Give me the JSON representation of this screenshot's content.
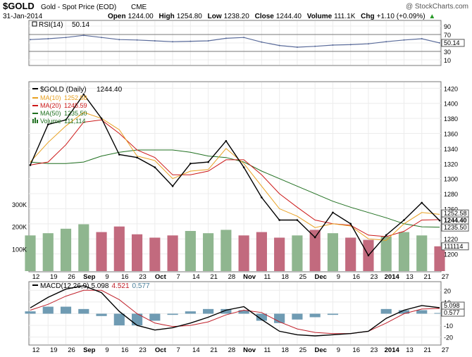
{
  "header": {
    "symbol": "$GOLD",
    "name": "Gold - Spot Price (EOD)",
    "exchange": "CME",
    "watermark": "@ StockCharts.com",
    "date": "31-Jan-2014",
    "open_label": "Open",
    "open": "1244.00",
    "high_label": "High",
    "high": "1254.80",
    "low_label": "Low",
    "low": "1238.20",
    "close_label": "Close",
    "close": "1244.40",
    "volume_label": "Volume",
    "volume": "111.1K",
    "chg_label": "Chg",
    "chg": "+1.10 (+0.09%)",
    "chg_arrow": "▲"
  },
  "rsi_panel": {
    "legend": "RSI(14)",
    "value": "50.14",
    "yticks": [
      "90",
      "70",
      "50",
      "30",
      "10"
    ],
    "value_box": "50.14"
  },
  "price_panel": {
    "legend_price": "$GOLD (Daily)",
    "legend_price_value": "1244.40",
    "legend_ma10": "MA(10)",
    "ma10_value": "1252.58",
    "legend_ma20": "MA(20)",
    "ma20_value": "1245.59",
    "legend_ma50": "MA(50)",
    "ma50_value": "1235.50",
    "legend_volume": "Volume",
    "volume_value": "111,114",
    "price_ticks": [
      "1420",
      "1400",
      "1380",
      "1360",
      "1340",
      "1320",
      "1300",
      "1280",
      "1260",
      "1240",
      "1220",
      "1200"
    ],
    "volume_ticks": [
      "300K",
      "200K",
      "100K"
    ],
    "value_boxes": [
      "1252.58",
      "1244.40",
      "1235.50",
      "111114"
    ]
  },
  "macd_panel": {
    "legend": "MACD(12,26,9)",
    "macd": "5.098",
    "signal": "4.521",
    "hist": "0.577",
    "yticks": [
      "20",
      "10",
      "0",
      "-10",
      "-20"
    ],
    "value_boxes": [
      "5.098",
      "0.577"
    ]
  },
  "x_labels": [
    "12",
    "19",
    "26",
    "Sep",
    "9",
    "16",
    "23",
    "Oct",
    "7",
    "14",
    "21",
    "28",
    "Nov",
    "11",
    "18",
    "25",
    "Dec",
    "9",
    "16",
    "23",
    "2014",
    "13",
    "21",
    "27"
  ],
  "colors": {
    "price": "#000000",
    "ma10": "#e8a020",
    "ma20": "#cc1818",
    "ma50": "#207020",
    "vol_up": "#8fb68f",
    "vol_down": "#c26a7e",
    "rsi": "#5a6b9a",
    "macd_line": "#000000",
    "signal_line": "#c0202a",
    "histogram": "#6f9bb3"
  },
  "chart_data": [
    {
      "type": "line",
      "title": "RSI(14)",
      "ylim": [
        0,
        100
      ],
      "reference_lines": [
        30,
        70
      ],
      "x": [
        "12",
        "19",
        "26",
        "Sep",
        "9",
        "16",
        "23",
        "Oct",
        "7",
        "14",
        "21",
        "28",
        "Nov",
        "11",
        "18",
        "25",
        "Dec",
        "9",
        "16",
        "23",
        "2014",
        "13",
        "21",
        "27"
      ],
      "series": [
        {
          "name": "RSI(14)",
          "values": [
            58,
            60,
            63,
            68,
            63,
            58,
            57,
            55,
            53,
            54,
            55,
            61,
            63,
            52,
            44,
            40,
            42,
            45,
            46,
            48,
            53,
            57,
            60,
            50.14
          ]
        }
      ]
    },
    {
      "type": "line",
      "title": "$GOLD (Daily)",
      "ylim": [
        1180,
        1425
      ],
      "x": [
        "12",
        "19",
        "26",
        "Sep",
        "9",
        "16",
        "23",
        "Oct",
        "7",
        "14",
        "21",
        "28",
        "Nov",
        "11",
        "18",
        "25",
        "Dec",
        "9",
        "16",
        "23",
        "2014",
        "13",
        "21",
        "27"
      ],
      "series": [
        {
          "name": "$GOLD (Daily)",
          "values": [
            1318,
            1372,
            1378,
            1412,
            1380,
            1332,
            1328,
            1315,
            1290,
            1320,
            1322,
            1350,
            1315,
            1275,
            1245,
            1245,
            1222,
            1255,
            1240,
            1198,
            1225,
            1245,
            1268,
            1244.4
          ]
        },
        {
          "name": "MA(10)",
          "values": [
            1322,
            1348,
            1370,
            1388,
            1380,
            1365,
            1330,
            1324,
            1300,
            1310,
            1312,
            1340,
            1320,
            1290,
            1260,
            1250,
            1235,
            1240,
            1237,
            1220,
            1218,
            1240,
            1255,
            1252.58
          ]
        },
        {
          "name": "MA(20)",
          "values": [
            1318,
            1322,
            1345,
            1375,
            1378,
            1360,
            1338,
            1328,
            1305,
            1305,
            1310,
            1325,
            1325,
            1305,
            1280,
            1262,
            1245,
            1240,
            1238,
            1225,
            1223,
            1230,
            1245,
            1245.59
          ]
        },
        {
          "name": "MA(50)",
          "values": [
            1322,
            1320,
            1320,
            1322,
            1330,
            1335,
            1338,
            1338,
            1338,
            1335,
            1330,
            1328,
            1322,
            1310,
            1300,
            1290,
            1280,
            1270,
            1262,
            1255,
            1248,
            1240,
            1236,
            1235.5
          ]
        }
      ]
    },
    {
      "type": "bar",
      "title": "Volume",
      "ylim": [
        0,
        300000
      ],
      "x": [
        "12",
        "19",
        "26",
        "Sep",
        "9",
        "16",
        "23",
        "Oct",
        "7",
        "14",
        "21",
        "28",
        "Nov",
        "11",
        "18",
        "25",
        "Dec",
        "9",
        "16",
        "23",
        "2014",
        "13",
        "21",
        "27"
      ],
      "series": [
        {
          "name": "Volume",
          "values": [
            160000,
            170000,
            190000,
            210000,
            175000,
            200000,
            165000,
            150000,
            160000,
            180000,
            170000,
            185000,
            160000,
            175000,
            150000,
            160000,
            185000,
            170000,
            150000,
            140000,
            155000,
            175000,
            160000,
            111114
          ]
        }
      ]
    },
    {
      "type": "line",
      "title": "MACD(12,26,9)",
      "ylim": [
        -25,
        25
      ],
      "x": [
        "12",
        "19",
        "26",
        "Sep",
        "9",
        "16",
        "23",
        "Oct",
        "7",
        "14",
        "21",
        "28",
        "Nov",
        "11",
        "18",
        "25",
        "Dec",
        "9",
        "16",
        "23",
        "2014",
        "13",
        "21",
        "27"
      ],
      "series": [
        {
          "name": "MACD",
          "values": [
            5,
            14,
            21,
            24,
            18,
            2,
            -10,
            -14,
            -12,
            -8,
            -3,
            3,
            6,
            -5,
            -15,
            -18,
            -19,
            -18,
            -17,
            -15,
            -4,
            3,
            7,
            5.098
          ]
        },
        {
          "name": "Signal",
          "values": [
            3,
            8,
            15,
            20,
            20,
            12,
            0,
            -8,
            -11,
            -10,
            -7,
            -1,
            3,
            1,
            -7,
            -13,
            -16,
            -17,
            -17,
            -15,
            -8,
            0,
            4,
            4.521
          ]
        },
        {
          "name": "Histogram",
          "values": [
            2,
            6,
            6,
            4,
            -2,
            -10,
            -10,
            -6,
            -1,
            2,
            4,
            4,
            3,
            -6,
            -8,
            -5,
            -3,
            -1,
            0,
            0,
            4,
            3,
            3,
            0.577
          ]
        }
      ]
    }
  ]
}
